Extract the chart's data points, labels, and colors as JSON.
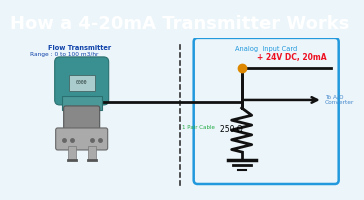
{
  "title": "How a 4-20mA Transmitter Works",
  "title_bg": "#EE1122",
  "title_color": "#FFFFFF",
  "title_fontsize": 13,
  "bg_color": "#ECF5FA",
  "diagram_bg": "#ECFAFA",
  "flow_transmitter_label": "Flow Transmitter",
  "flow_transmitter_range": "Range : 0 to 100 m3/hr",
  "analog_card_label": "Analog  Input Card",
  "analog_card_color": "#2299DD",
  "voltage_label": "+ 24V DC, 20mA",
  "voltage_color": "#EE1122",
  "cable_label": "1 Pair Cable",
  "cable_label_color": "#22AA44",
  "resistor_label": "250 Ω",
  "ad_label": "To A/D\nConverter",
  "ad_color": "#4488CC",
  "wire_color": "#111111",
  "dashed_color": "#333333",
  "node_color": "#DD8800",
  "label_color": "#2244AA"
}
